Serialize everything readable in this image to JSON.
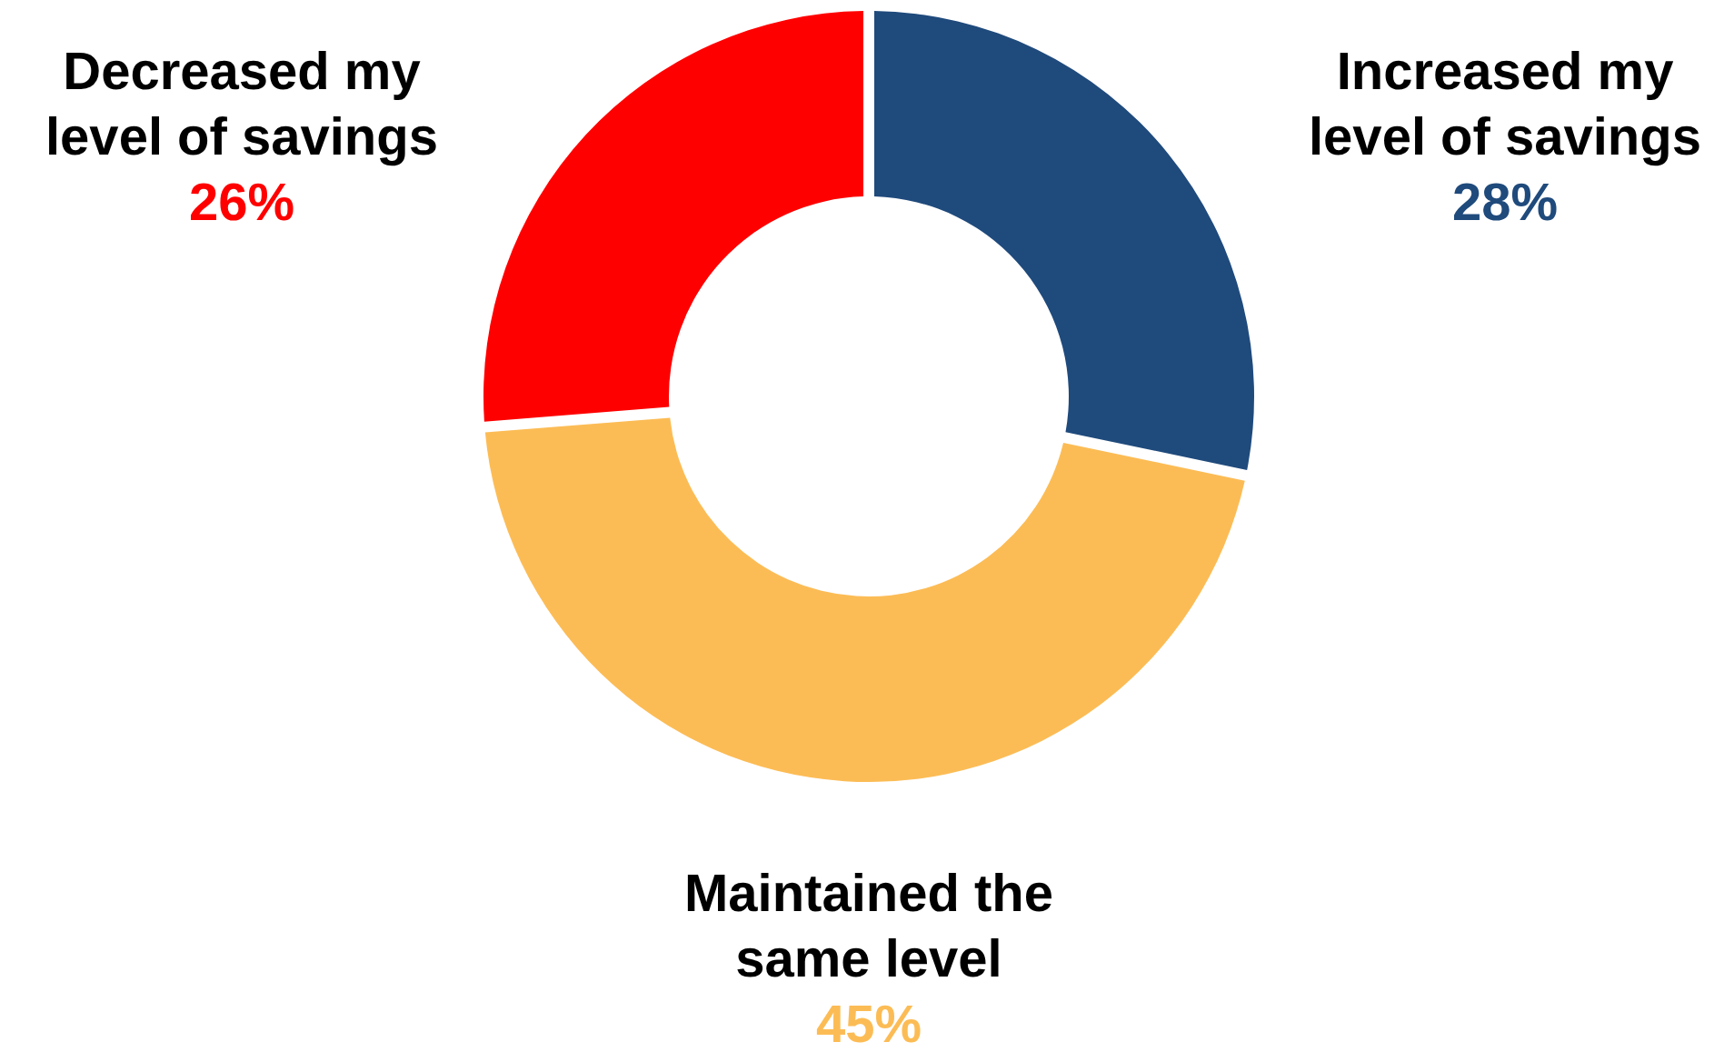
{
  "chart_data": {
    "type": "donut",
    "categories": [
      "Increased my level of savings",
      "Maintained the same level",
      "Decreased my level of savings"
    ],
    "values": [
      28,
      45,
      26
    ],
    "colors": [
      "#1f4a7c",
      "#fcbc55",
      "#ff0000"
    ],
    "value_labels": [
      "28%",
      "45%",
      "26%"
    ]
  }
}
